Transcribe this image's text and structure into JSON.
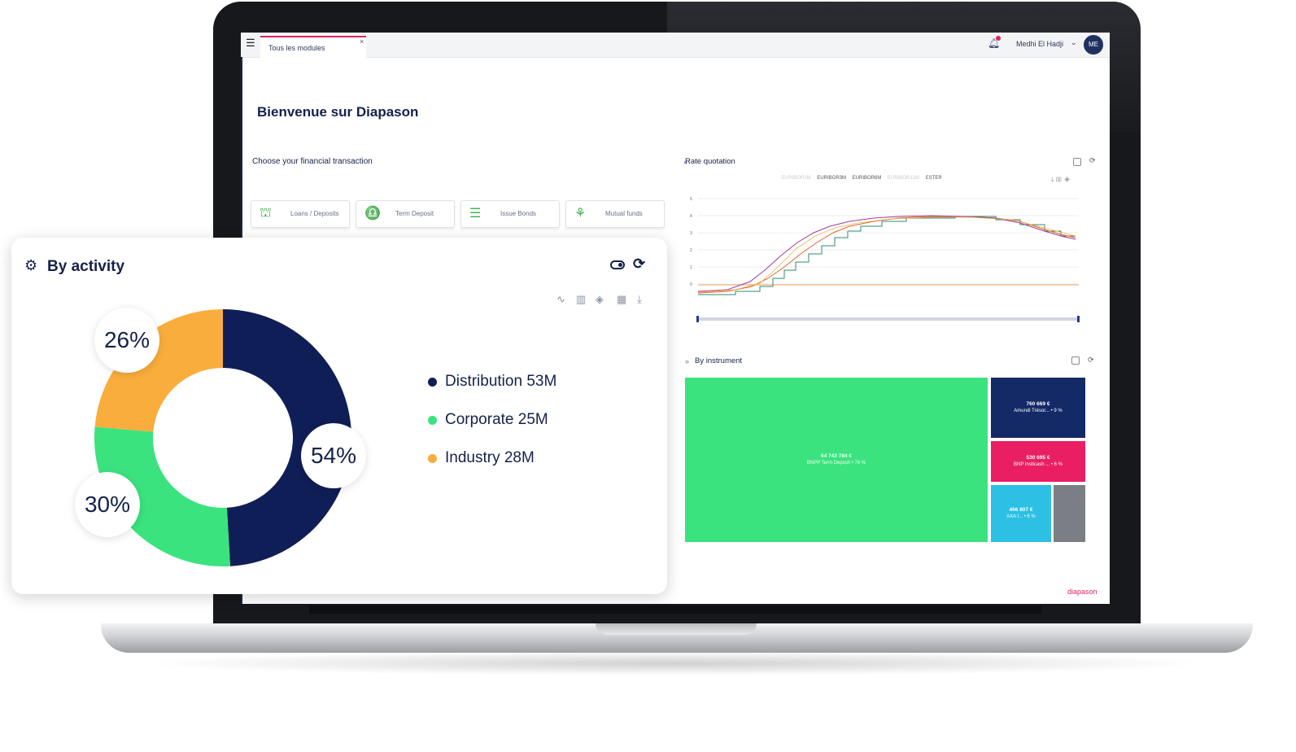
{
  "app": {
    "tab_label": "Tous les modules",
    "tab_close": "×",
    "user_name": "Medhi El Hadji",
    "user_initials": "ME",
    "brand": "diapason"
  },
  "home": {
    "title": "Bienvenue sur Diapason",
    "transaction_prompt": "Choose your financial transaction",
    "transactions": [
      {
        "label": "Loans / Deposits",
        "icon": "basket-icon"
      },
      {
        "label": "Term Deposit",
        "icon": "piggy-bank-icon"
      },
      {
        "label": "Issue Bonds",
        "icon": "bonds-icon"
      },
      {
        "label": "Mutual funds",
        "icon": "chart-trend-icon"
      }
    ]
  },
  "rate_panel": {
    "title": "Rate quotation",
    "legend": [
      "EURIBOR1M",
      "EURIBOR3M",
      "EURIBOR6M",
      "EURIBOR12M",
      "ESTER"
    ],
    "colors": {
      "EURIBOR3M": "#e2642c",
      "EURIBOR6M": "#a13c9a",
      "ESTER": "#2e8b73",
      "EURIBOR1M": "#e8b34a",
      "flat": "#f4a56a"
    }
  },
  "instrument_panel": {
    "title": "By instrument",
    "tiles": [
      {
        "amount": "64 743 784 €",
        "label": "BNPP Term Deposit • 76 %",
        "color": "#3ae37e"
      },
      {
        "amount": "760 669 €",
        "label": "Amundi Trésor... • 9 %",
        "color": "#142a67"
      },
      {
        "amount": "530 695 €",
        "label": "BNP Insticash ... • 6 %",
        "color": "#ea1f63"
      },
      {
        "amount": "466 807 €",
        "label": "AXA I... • 6 %",
        "color": "#2bc0e4"
      }
    ]
  },
  "activity_card": {
    "title": "By activity",
    "chart_data": {
      "type": "pie",
      "categories": [
        "Distribution",
        "Corporate",
        "Industry"
      ],
      "values": [
        54,
        30,
        26
      ],
      "labels": [
        "54%",
        "30%",
        "26%"
      ],
      "colors": [
        "#0f1e56",
        "#3ae37e",
        "#f9ad3c"
      ],
      "legend": [
        "Distribution 53M",
        "Corporate 25M",
        "Industry 28M"
      ]
    }
  }
}
